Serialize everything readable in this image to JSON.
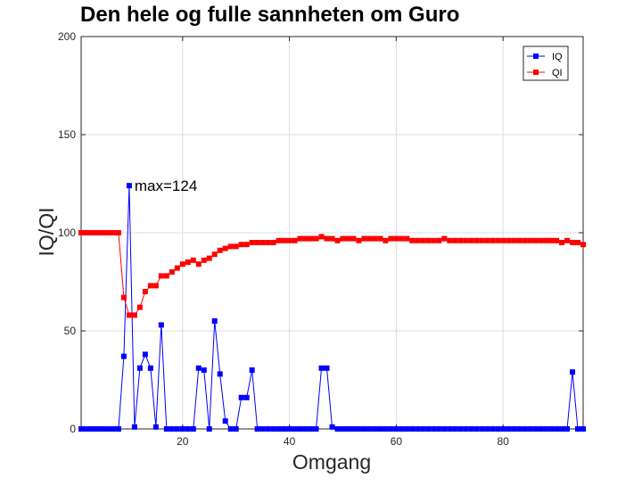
{
  "chart_data": {
    "type": "line",
    "title": "Den hele og fulle sannheten om Guro",
    "xlabel": "Omgang",
    "ylabel": "IQ/QI",
    "xlim": [
      1,
      95
    ],
    "ylim": [
      0,
      200
    ],
    "xticks": [
      20,
      40,
      60,
      80
    ],
    "yticks": [
      0,
      50,
      100,
      150,
      200
    ],
    "grid": true,
    "legend_position": "top-right",
    "annotation": {
      "text": "max=124",
      "x": 10,
      "y": 124
    },
    "series": [
      {
        "name": "IQ",
        "color": "#0000ff",
        "marker": "square",
        "values": [
          0,
          0,
          0,
          0,
          0,
          0,
          0,
          0,
          37,
          124,
          1,
          31,
          38,
          31,
          1,
          53,
          0,
          0,
          0,
          0,
          0,
          0,
          31,
          30,
          0,
          55,
          28,
          4,
          0,
          0,
          16,
          16,
          30,
          0,
          0,
          0,
          0,
          0,
          0,
          0,
          0,
          0,
          0,
          0,
          0,
          31,
          31,
          1,
          0,
          0,
          0,
          0,
          0,
          0,
          0,
          0,
          0,
          0,
          0,
          0,
          0,
          0,
          0,
          0,
          0,
          0,
          0,
          0,
          0,
          0,
          0,
          0,
          0,
          0,
          0,
          0,
          0,
          0,
          0,
          0,
          0,
          0,
          0,
          0,
          0,
          0,
          0,
          0,
          0,
          0,
          0,
          0,
          29,
          0,
          0
        ]
      },
      {
        "name": "QI",
        "color": "#ff0000",
        "marker": "square",
        "values": [
          100,
          100,
          100,
          100,
          100,
          100,
          100,
          100,
          67,
          58,
          58,
          62,
          70,
          73,
          73,
          78,
          78,
          80,
          82,
          84,
          85,
          86,
          84,
          86,
          87,
          89,
          91,
          92,
          93,
          93,
          94,
          94,
          95,
          95,
          95,
          95,
          95,
          96,
          96,
          96,
          96,
          97,
          97,
          97,
          97,
          98,
          97,
          97,
          96,
          97,
          97,
          97,
          96,
          97,
          97,
          97,
          97,
          96,
          97,
          97,
          97,
          97,
          96,
          96,
          96,
          96,
          96,
          96,
          97,
          96,
          96,
          96,
          96,
          96,
          96,
          96,
          96,
          96,
          96,
          96,
          96,
          96,
          96,
          96,
          96,
          96,
          96,
          96,
          96,
          96,
          95,
          96,
          95,
          95,
          94
        ]
      }
    ]
  }
}
